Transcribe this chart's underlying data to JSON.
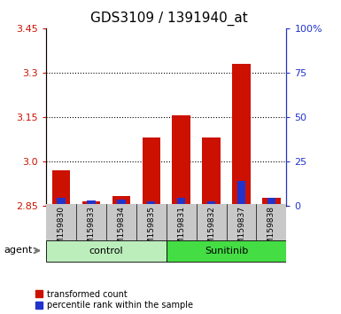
{
  "title": "GDS3109 / 1391940_at",
  "samples": [
    "GSM159830",
    "GSM159833",
    "GSM159834",
    "GSM159835",
    "GSM159831",
    "GSM159832",
    "GSM159837",
    "GSM159838"
  ],
  "red_values": [
    2.97,
    2.865,
    2.882,
    3.08,
    3.155,
    3.08,
    3.33,
    2.876
  ],
  "blue_pct": [
    4.5,
    3.0,
    3.5,
    2.5,
    4.5,
    2.5,
    14.0,
    4.5
  ],
  "y_min": 2.85,
  "y_max": 3.45,
  "y_ticks_left": [
    2.85,
    3.0,
    3.15,
    3.3,
    3.45
  ],
  "y_ticks_right": [
    0,
    25,
    50,
    75,
    100
  ],
  "groups": [
    {
      "label": "control",
      "start": 0,
      "end": 3,
      "color": "#bbeebb"
    },
    {
      "label": "Sunitinib",
      "start": 4,
      "end": 7,
      "color": "#44dd44"
    }
  ],
  "bar_width": 0.6,
  "blue_bar_width": 0.28,
  "red_color": "#cc1100",
  "blue_color": "#2233cc",
  "legend_red": "transformed count",
  "legend_blue": "percentile rank within the sample",
  "left_axis_color": "#cc1100",
  "right_axis_color": "#2233cc"
}
